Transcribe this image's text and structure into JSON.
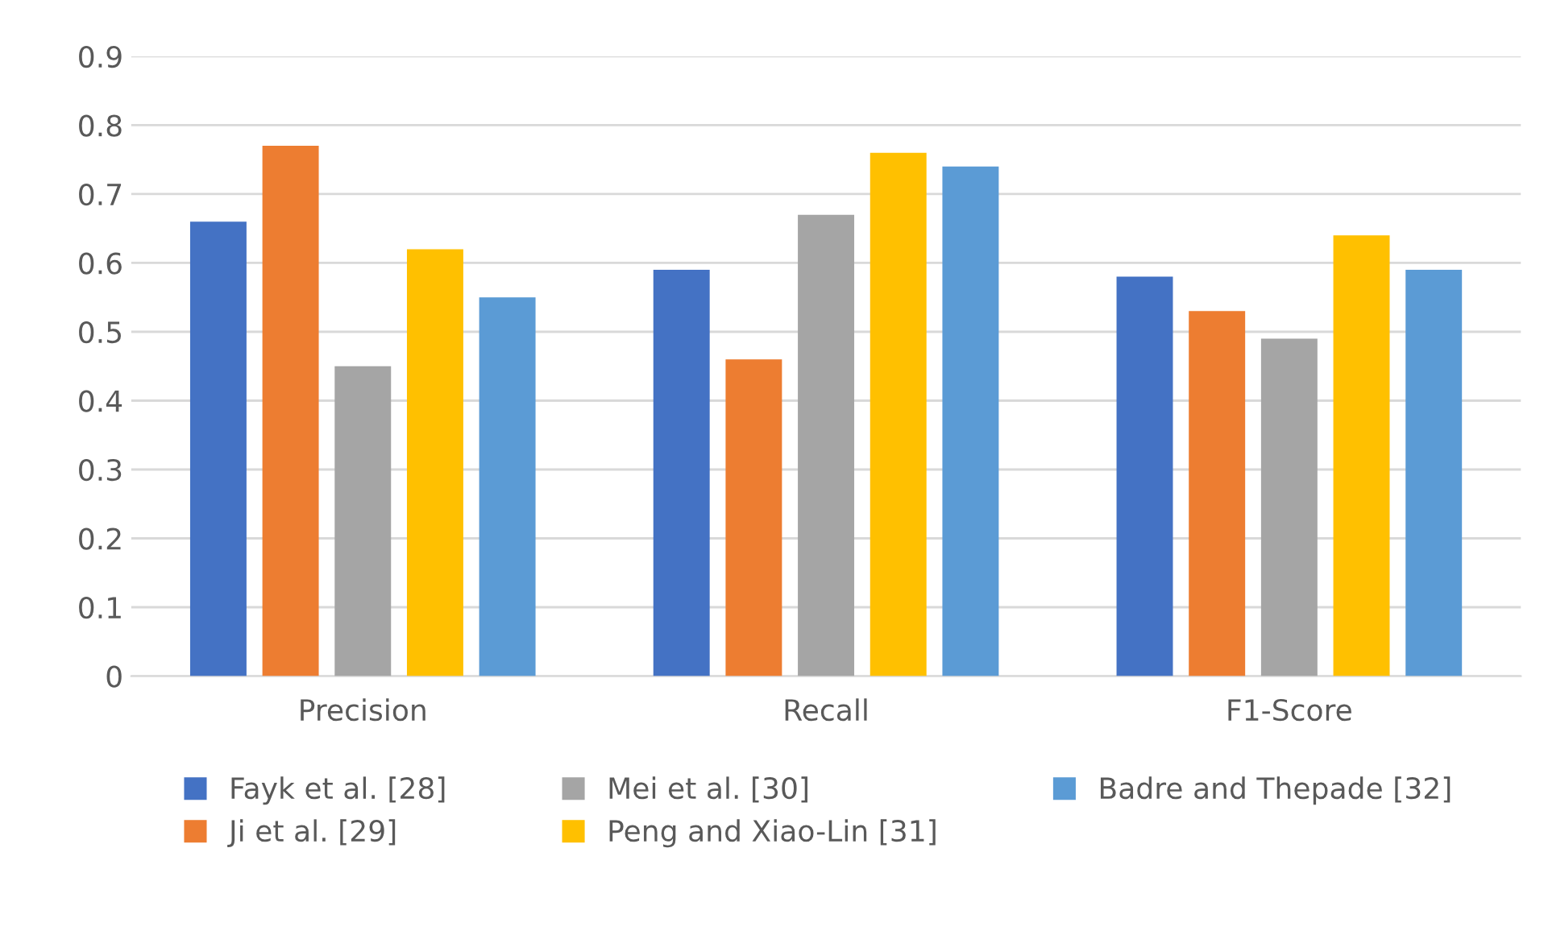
{
  "chart_data": {
    "type": "bar",
    "categories": [
      "Precision",
      "Recall",
      "F1-Score"
    ],
    "series": [
      {
        "name": "Fayk et al. [28]",
        "color": "#4472c4",
        "values": [
          0.66,
          0.59,
          0.58
        ]
      },
      {
        "name": "Ji et al. [29]",
        "color": "#ed7d31",
        "values": [
          0.77,
          0.46,
          0.53
        ]
      },
      {
        "name": "Mei et al. [30]",
        "color": "#a5a5a5",
        "values": [
          0.45,
          0.67,
          0.49
        ]
      },
      {
        "name": "Peng and Xiao-Lin [31]",
        "color": "#ffc000",
        "values": [
          0.62,
          0.76,
          0.64
        ]
      },
      {
        "name": "Badre and Thepade [32]",
        "color": "#5b9bd5",
        "values": [
          0.55,
          0.74,
          0.59
        ]
      }
    ],
    "ylim": [
      0,
      0.9
    ],
    "yticks": [
      0,
      0.1,
      0.2,
      0.3,
      0.4,
      0.5,
      0.6,
      0.7,
      0.8,
      0.9
    ],
    "grid": "y",
    "legend": "bottom"
  }
}
